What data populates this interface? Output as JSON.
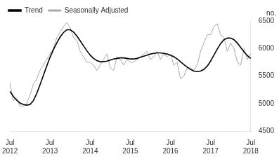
{
  "chart_data": {
    "type": "line",
    "ylabel": "no.",
    "categories": [
      "Jul\n2012",
      null,
      null,
      null,
      null,
      null,
      null,
      null,
      null,
      null,
      null,
      null,
      "Jul\n2013",
      null,
      null,
      null,
      null,
      null,
      null,
      null,
      null,
      null,
      null,
      null,
      "Jul\n2014",
      null,
      null,
      null,
      null,
      null,
      null,
      null,
      null,
      null,
      null,
      null,
      "Jul\n2015",
      null,
      null,
      null,
      null,
      null,
      null,
      null,
      null,
      null,
      null,
      null,
      "Jul\n2016",
      null,
      null,
      null,
      null,
      null,
      null,
      null,
      null,
      null,
      null,
      null,
      "Jul\n2017",
      null,
      null,
      null,
      null,
      null,
      null,
      null,
      null,
      null,
      null,
      null,
      "Jul\n2018"
    ],
    "series": [
      {
        "name": "Trend",
        "color": "#000000",
        "values": [
          5220,
          5130,
          5060,
          5010,
          4980,
          4970,
          4980,
          5050,
          5180,
          5340,
          5510,
          5680,
          5840,
          5980,
          6100,
          6210,
          6290,
          6340,
          6340,
          6300,
          6230,
          6140,
          6050,
          5960,
          5880,
          5820,
          5780,
          5760,
          5760,
          5770,
          5790,
          5810,
          5820,
          5830,
          5830,
          5820,
          5810,
          5810,
          5820,
          5840,
          5860,
          5880,
          5900,
          5910,
          5920,
          5920,
          5910,
          5900,
          5880,
          5850,
          5810,
          5760,
          5710,
          5660,
          5620,
          5590,
          5580,
          5590,
          5620,
          5680,
          5770,
          5880,
          5990,
          6090,
          6160,
          6190,
          6190,
          6160,
          6100,
          6020,
          5940,
          5870,
          5820
        ]
      },
      {
        "name": "Seasonally Adjusted",
        "color": "#aaaaaa",
        "values": [
          5380,
          5050,
          5100,
          4950,
          4950,
          5000,
          5150,
          5350,
          5450,
          5600,
          5700,
          5800,
          5900,
          6000,
          6200,
          6300,
          6400,
          6470,
          6380,
          6200,
          6150,
          5950,
          5850,
          5750,
          5750,
          5700,
          5600,
          5700,
          5800,
          5900,
          5650,
          5600,
          5850,
          5800,
          5700,
          5800,
          5750,
          5750,
          5800,
          5850,
          5900,
          5950,
          5800,
          5850,
          5950,
          5800,
          5900,
          5850,
          5900,
          5700,
          5750,
          5450,
          5500,
          5650,
          5650,
          5600,
          5700,
          5950,
          6100,
          6250,
          6250,
          6400,
          6450,
          6250,
          6200,
          5950,
          6100,
          6000,
          5750,
          5700,
          6000,
          5800,
          5900
        ]
      }
    ],
    "ylim": [
      4500,
      6500
    ],
    "yticks": [
      4500,
      5000,
      5500,
      6000,
      6500
    ],
    "grid": false,
    "legend": "upper left"
  }
}
